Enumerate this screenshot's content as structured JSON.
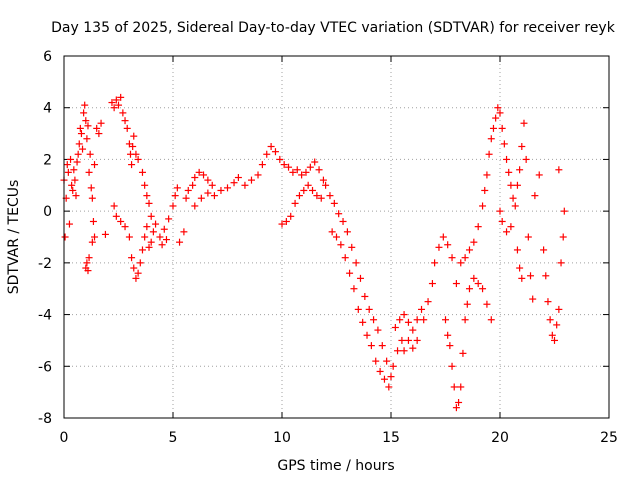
{
  "chart_data": {
    "type": "scatter",
    "title": "Day 135 of 2025, Sidereal Day-to-day VTEC variation (SDTVAR) for receiver reyk",
    "xlabel": "GPS time / hours",
    "ylabel": "SDTVAR / TECUs",
    "xlim": [
      0,
      25
    ],
    "ylim": [
      -8,
      6
    ],
    "xticks": [
      0,
      5,
      10,
      15,
      20,
      25
    ],
    "yticks": [
      -8,
      -6,
      -4,
      -2,
      0,
      2,
      4,
      6
    ],
    "grid": true,
    "marker": "+",
    "marker_color": "#ff0000",
    "series": [
      {
        "name": "SDTVAR",
        "points": [
          [
            0.0,
            1.2
          ],
          [
            0.05,
            -1.0
          ],
          [
            0.1,
            0.5
          ],
          [
            0.15,
            1.8
          ],
          [
            0.2,
            1.5
          ],
          [
            0.25,
            -0.5
          ],
          [
            0.3,
            2.0
          ],
          [
            0.35,
            1.0
          ],
          [
            0.4,
            0.8
          ],
          [
            0.45,
            1.6
          ],
          [
            0.5,
            1.2
          ],
          [
            0.55,
            0.6
          ],
          [
            0.6,
            1.9
          ],
          [
            0.65,
            2.2
          ],
          [
            0.7,
            2.6
          ],
          [
            0.75,
            3.2
          ],
          [
            0.8,
            3.0
          ],
          [
            0.85,
            2.4
          ],
          [
            0.9,
            3.8
          ],
          [
            0.95,
            4.1
          ],
          [
            1.0,
            3.5
          ],
          [
            1.05,
            2.8
          ],
          [
            1.1,
            3.3
          ],
          [
            1.15,
            1.5
          ],
          [
            1.2,
            2.2
          ],
          [
            1.25,
            0.9
          ],
          [
            1.3,
            0.5
          ],
          [
            1.35,
            -0.4
          ],
          [
            1.4,
            -1.0
          ],
          [
            1.0,
            -2.2
          ],
          [
            1.05,
            -2.0
          ],
          [
            1.1,
            -2.3
          ],
          [
            1.15,
            -1.8
          ],
          [
            1.3,
            -1.2
          ],
          [
            1.4,
            1.8
          ],
          [
            1.5,
            3.2
          ],
          [
            1.6,
            3.0
          ],
          [
            1.7,
            3.4
          ],
          [
            1.9,
            -0.9
          ],
          [
            2.2,
            4.2
          ],
          [
            2.3,
            4.0
          ],
          [
            2.4,
            4.3
          ],
          [
            2.5,
            4.1
          ],
          [
            2.6,
            4.4
          ],
          [
            2.7,
            3.8
          ],
          [
            2.8,
            3.5
          ],
          [
            2.9,
            3.2
          ],
          [
            3.0,
            2.6
          ],
          [
            3.05,
            2.2
          ],
          [
            3.1,
            1.8
          ],
          [
            3.15,
            2.5
          ],
          [
            3.2,
            2.9
          ],
          [
            3.3,
            2.2
          ],
          [
            3.4,
            2.0
          ],
          [
            2.3,
            0.2
          ],
          [
            2.4,
            -0.2
          ],
          [
            2.6,
            -0.4
          ],
          [
            2.8,
            -0.6
          ],
          [
            3.0,
            -1.0
          ],
          [
            3.1,
            -1.8
          ],
          [
            3.2,
            -2.2
          ],
          [
            3.3,
            -2.6
          ],
          [
            3.4,
            -2.4
          ],
          [
            3.5,
            -2.0
          ],
          [
            3.6,
            -1.5
          ],
          [
            3.7,
            -1.0
          ],
          [
            3.8,
            -0.6
          ],
          [
            3.9,
            -1.4
          ],
          [
            4.0,
            -1.2
          ],
          [
            4.1,
            -0.8
          ],
          [
            3.6,
            1.5
          ],
          [
            3.7,
            1.0
          ],
          [
            3.8,
            0.6
          ],
          [
            3.9,
            0.3
          ],
          [
            4.0,
            -0.2
          ],
          [
            4.2,
            -0.5
          ],
          [
            4.4,
            -1.0
          ],
          [
            4.6,
            -0.7
          ],
          [
            4.8,
            -0.3
          ],
          [
            5.0,
            0.2
          ],
          [
            5.1,
            0.6
          ],
          [
            5.2,
            0.9
          ],
          [
            4.5,
            -1.3
          ],
          [
            4.7,
            -1.1
          ],
          [
            5.3,
            -1.2
          ],
          [
            5.5,
            -0.8
          ],
          [
            5.6,
            0.5
          ],
          [
            5.7,
            0.8
          ],
          [
            5.9,
            1.0
          ],
          [
            6.0,
            1.3
          ],
          [
            6.2,
            1.5
          ],
          [
            6.4,
            1.4
          ],
          [
            6.6,
            1.2
          ],
          [
            6.8,
            1.0
          ],
          [
            6.0,
            0.2
          ],
          [
            6.3,
            0.5
          ],
          [
            6.6,
            0.7
          ],
          [
            6.9,
            0.6
          ],
          [
            7.2,
            0.8
          ],
          [
            7.5,
            0.9
          ],
          [
            7.8,
            1.1
          ],
          [
            8.0,
            1.3
          ],
          [
            8.3,
            1.0
          ],
          [
            8.6,
            1.2
          ],
          [
            8.9,
            1.4
          ],
          [
            9.1,
            1.8
          ],
          [
            9.3,
            2.2
          ],
          [
            9.5,
            2.5
          ],
          [
            9.7,
            2.3
          ],
          [
            9.9,
            2.0
          ],
          [
            10.1,
            1.8
          ],
          [
            10.3,
            1.7
          ],
          [
            10.5,
            1.5
          ],
          [
            10.7,
            1.6
          ],
          [
            10.9,
            1.4
          ],
          [
            11.1,
            1.5
          ],
          [
            11.3,
            1.7
          ],
          [
            11.5,
            1.9
          ],
          [
            11.7,
            1.6
          ],
          [
            11.9,
            1.2
          ],
          [
            10.0,
            -0.5
          ],
          [
            10.2,
            -0.4
          ],
          [
            10.4,
            -0.2
          ],
          [
            10.6,
            0.3
          ],
          [
            10.8,
            0.6
          ],
          [
            11.0,
            0.8
          ],
          [
            11.2,
            1.0
          ],
          [
            11.4,
            0.8
          ],
          [
            11.6,
            0.6
          ],
          [
            11.8,
            0.5
          ],
          [
            12.0,
            1.0
          ],
          [
            12.2,
            0.6
          ],
          [
            12.4,
            0.3
          ],
          [
            12.6,
            -0.1
          ],
          [
            12.8,
            -0.4
          ],
          [
            13.0,
            -0.8
          ],
          [
            13.2,
            -1.4
          ],
          [
            13.4,
            -2.0
          ],
          [
            13.6,
            -2.6
          ],
          [
            13.8,
            -3.3
          ],
          [
            12.3,
            -0.8
          ],
          [
            12.5,
            -1.0
          ],
          [
            12.7,
            -1.3
          ],
          [
            12.9,
            -1.8
          ],
          [
            13.1,
            -2.4
          ],
          [
            13.3,
            -3.0
          ],
          [
            13.5,
            -3.8
          ],
          [
            13.7,
            -4.3
          ],
          [
            13.9,
            -4.8
          ],
          [
            14.1,
            -5.2
          ],
          [
            14.0,
            -3.8
          ],
          [
            14.2,
            -4.2
          ],
          [
            14.4,
            -4.6
          ],
          [
            14.6,
            -5.2
          ],
          [
            14.8,
            -5.8
          ],
          [
            15.0,
            -6.4
          ],
          [
            14.3,
            -5.8
          ],
          [
            14.5,
            -6.2
          ],
          [
            14.7,
            -6.5
          ],
          [
            14.9,
            -6.8
          ],
          [
            15.1,
            -6.0
          ],
          [
            15.3,
            -5.4
          ],
          [
            15.5,
            -5.0
          ],
          [
            15.2,
            -4.5
          ],
          [
            15.4,
            -4.2
          ],
          [
            15.6,
            -4.0
          ],
          [
            15.8,
            -4.3
          ],
          [
            16.0,
            -4.6
          ],
          [
            16.2,
            -4.2
          ],
          [
            16.4,
            -3.8
          ],
          [
            15.6,
            -5.4
          ],
          [
            15.8,
            -5.0
          ],
          [
            16.0,
            -5.3
          ],
          [
            16.2,
            -5.0
          ],
          [
            16.5,
            -4.2
          ],
          [
            16.7,
            -3.5
          ],
          [
            16.9,
            -2.8
          ],
          [
            17.0,
            -2.0
          ],
          [
            17.2,
            -1.4
          ],
          [
            17.4,
            -1.0
          ],
          [
            17.6,
            -1.3
          ],
          [
            17.8,
            -1.8
          ],
          [
            17.5,
            -4.2
          ],
          [
            17.6,
            -4.8
          ],
          [
            17.7,
            -5.2
          ],
          [
            17.8,
            -6.0
          ],
          [
            17.9,
            -6.8
          ],
          [
            18.0,
            -7.6
          ],
          [
            18.1,
            -7.4
          ],
          [
            18.2,
            -6.8
          ],
          [
            18.3,
            -5.5
          ],
          [
            18.4,
            -4.2
          ],
          [
            18.5,
            -3.6
          ],
          [
            18.6,
            -3.0
          ],
          [
            18.8,
            -2.6
          ],
          [
            19.0,
            -2.8
          ],
          [
            19.2,
            -3.0
          ],
          [
            19.4,
            -3.6
          ],
          [
            19.6,
            -4.2
          ],
          [
            18.0,
            -2.8
          ],
          [
            18.2,
            -2.0
          ],
          [
            18.4,
            -1.8
          ],
          [
            18.6,
            -1.5
          ],
          [
            18.8,
            -1.2
          ],
          [
            19.0,
            -0.6
          ],
          [
            19.2,
            0.2
          ],
          [
            19.3,
            0.8
          ],
          [
            19.4,
            1.4
          ],
          [
            19.5,
            2.2
          ],
          [
            19.6,
            2.8
          ],
          [
            19.7,
            3.2
          ],
          [
            19.8,
            3.6
          ],
          [
            19.9,
            4.0
          ],
          [
            20.0,
            3.8
          ],
          [
            20.1,
            3.2
          ],
          [
            20.2,
            2.6
          ],
          [
            20.3,
            2.0
          ],
          [
            20.4,
            1.5
          ],
          [
            20.5,
            1.0
          ],
          [
            20.6,
            0.5
          ],
          [
            20.0,
            0.0
          ],
          [
            20.1,
            -0.4
          ],
          [
            20.3,
            -0.8
          ],
          [
            20.5,
            -0.6
          ],
          [
            20.7,
            0.2
          ],
          [
            20.8,
            1.0
          ],
          [
            20.9,
            1.6
          ],
          [
            21.0,
            2.5
          ],
          [
            21.1,
            3.4
          ],
          [
            21.2,
            2.0
          ],
          [
            20.8,
            -1.5
          ],
          [
            20.9,
            -2.2
          ],
          [
            21.0,
            -2.6
          ],
          [
            21.3,
            -1.0
          ],
          [
            21.4,
            -2.5
          ],
          [
            21.5,
            -3.4
          ],
          [
            21.6,
            0.6
          ],
          [
            21.8,
            1.4
          ],
          [
            22.0,
            -1.5
          ],
          [
            22.1,
            -2.5
          ],
          [
            22.2,
            -3.5
          ],
          [
            22.3,
            -4.2
          ],
          [
            22.4,
            -4.8
          ],
          [
            22.5,
            -5.0
          ],
          [
            22.6,
            -4.4
          ],
          [
            22.7,
            -3.8
          ],
          [
            22.8,
            -2.0
          ],
          [
            22.9,
            -1.0
          ],
          [
            22.95,
            0.0
          ],
          [
            22.7,
            1.6
          ]
        ]
      }
    ]
  }
}
